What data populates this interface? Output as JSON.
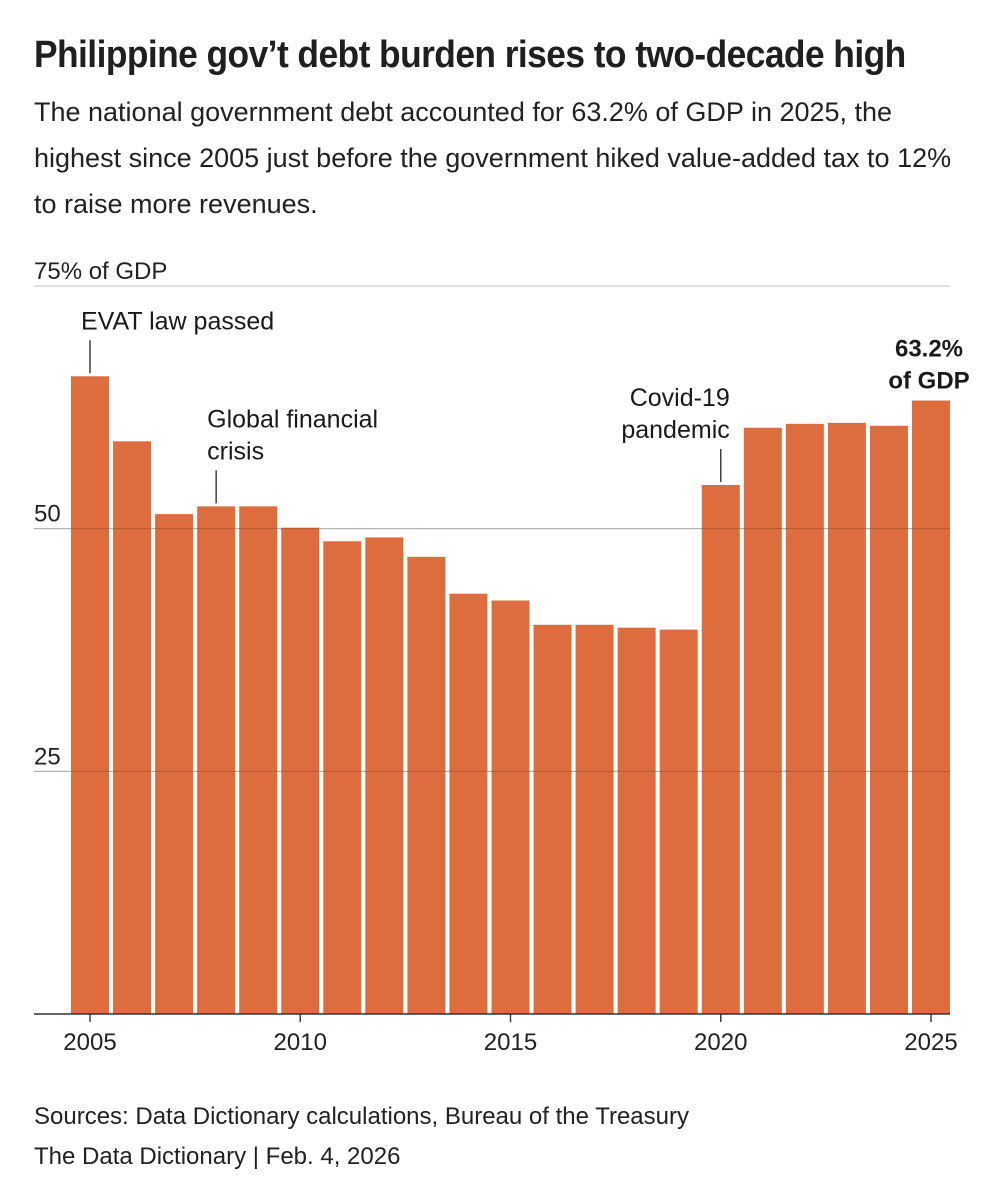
{
  "header": {
    "title": "Philippine gov’t debt burden rises to two-decade high",
    "subtitle": "The national government debt accounted for 63.2% of GDP in 2025, the highest since 2005 just before the government hiked value-added tax to 12% to raise more revenues."
  },
  "footer": {
    "sources": "Sources: Data Dictionary calculations, Bureau of the Treasury",
    "credit": "The Data Dictionary | Feb. 4, 2026"
  },
  "colors": {
    "bar": "#dd6d3f",
    "grid": "#cfcfcf",
    "axis": "#333333",
    "text": "#222222"
  },
  "chart_data": {
    "type": "bar",
    "title": "Philippine gov’t debt burden rises to two-decade high",
    "xlabel": "",
    "ylabel": "% of GDP",
    "ylim": [
      0,
      75
    ],
    "grid": true,
    "yticks": [
      {
        "value": 25,
        "label": "25"
      },
      {
        "value": 50,
        "label": "50"
      },
      {
        "value": 75,
        "label": "75% of GDP"
      }
    ],
    "xticks": [
      {
        "value": 2005,
        "label": "2005"
      },
      {
        "value": 2010,
        "label": "2010"
      },
      {
        "value": 2015,
        "label": "2015"
      },
      {
        "value": 2020,
        "label": "2020"
      },
      {
        "value": 2025,
        "label": "2025"
      }
    ],
    "categories": [
      2005,
      2006,
      2007,
      2008,
      2009,
      2010,
      2011,
      2012,
      2013,
      2014,
      2015,
      2016,
      2017,
      2018,
      2019,
      2020,
      2021,
      2022,
      2023,
      2024,
      2025
    ],
    "values": [
      65.7,
      59.0,
      51.5,
      52.3,
      52.3,
      50.1,
      48.7,
      49.1,
      47.1,
      43.3,
      42.6,
      40.1,
      40.1,
      39.8,
      39.6,
      54.5,
      60.4,
      60.8,
      60.9,
      60.6,
      63.2
    ],
    "annotations": [
      {
        "year": 2005,
        "lines": [
          "EVAT law passed"
        ],
        "bold": false,
        "align": "start",
        "leader": true
      },
      {
        "year": 2008,
        "lines": [
          "Global financial",
          "crisis"
        ],
        "bold": false,
        "align": "start",
        "leader": true
      },
      {
        "year": 2020,
        "lines": [
          "Covid-19",
          "pandemic"
        ],
        "bold": false,
        "align": "end",
        "leader": true
      },
      {
        "year": 2025,
        "lines": [
          "63.2%",
          "of GDP"
        ],
        "bold": true,
        "align": "end",
        "leader": false
      }
    ]
  }
}
